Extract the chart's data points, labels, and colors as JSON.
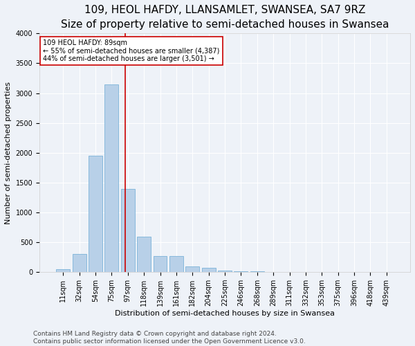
{
  "title": "109, HEOL HAFDY, LLANSAMLET, SWANSEA, SA7 9RZ",
  "subtitle": "Size of property relative to semi-detached houses in Swansea",
  "xlabel": "Distribution of semi-detached houses by size in Swansea",
  "ylabel": "Number of semi-detached properties",
  "categories": [
    "11sqm",
    "32sqm",
    "54sqm",
    "75sqm",
    "97sqm",
    "118sqm",
    "139sqm",
    "161sqm",
    "182sqm",
    "204sqm",
    "225sqm",
    "246sqm",
    "268sqm",
    "289sqm",
    "311sqm",
    "332sqm",
    "353sqm",
    "375sqm",
    "396sqm",
    "418sqm",
    "439sqm"
  ],
  "values": [
    50,
    300,
    1950,
    3150,
    1400,
    600,
    275,
    275,
    100,
    70,
    30,
    20,
    10,
    5,
    5,
    3,
    2,
    2,
    1,
    1,
    1
  ],
  "bar_color": "#b8d0e8",
  "bar_edge_color": "#6aaad4",
  "vline_color": "#cc0000",
  "annotation_text": "109 HEOL HAFDY: 89sqm\n← 55% of semi-detached houses are smaller (4,387)\n44% of semi-detached houses are larger (3,501) →",
  "annotation_box_color": "#ffffff",
  "annotation_box_edgecolor": "#cc0000",
  "ylim": [
    0,
    4000
  ],
  "yticks": [
    0,
    500,
    1000,
    1500,
    2000,
    2500,
    3000,
    3500,
    4000
  ],
  "footer": "Contains HM Land Registry data © Crown copyright and database right 2024.\nContains public sector information licensed under the Open Government Licence v3.0.",
  "background_color": "#eef2f8",
  "grid_color": "#ffffff",
  "title_fontsize": 11,
  "subtitle_fontsize": 9.5,
  "label_fontsize": 8,
  "tick_fontsize": 7,
  "footer_fontsize": 6.5,
  "annotation_fontsize": 7
}
